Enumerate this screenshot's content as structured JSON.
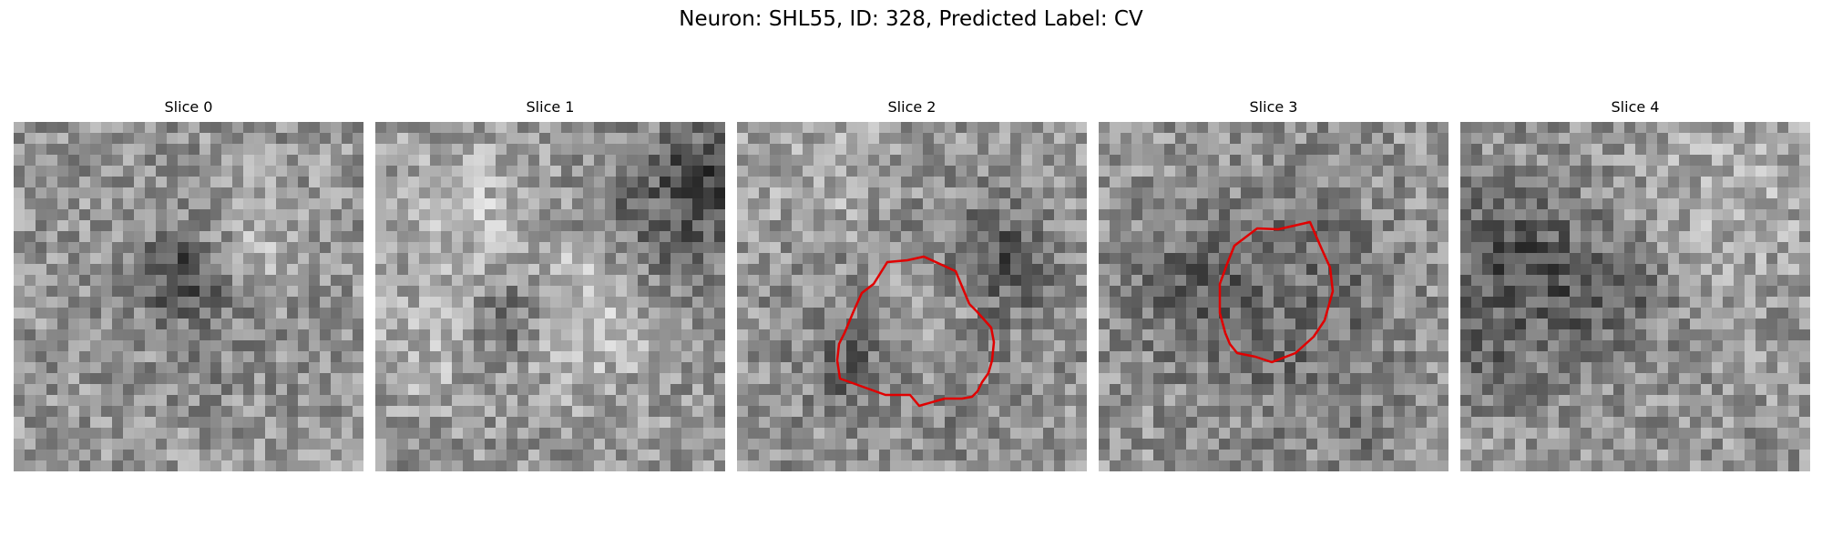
{
  "title": "Neuron: SHL55, ID: 328, Predicted Label: CV",
  "contour_color": "#e00000",
  "panels": [
    {
      "title": "Slice 0",
      "has_contour": false,
      "seed": 11
    },
    {
      "title": "Slice 1",
      "has_contour": false,
      "seed": 23
    },
    {
      "title": "Slice 2",
      "has_contour": true,
      "seed": 37
    },
    {
      "title": "Slice 3",
      "has_contour": true,
      "seed": 51
    },
    {
      "title": "Slice 4",
      "has_contour": false,
      "seed": 67
    }
  ]
}
